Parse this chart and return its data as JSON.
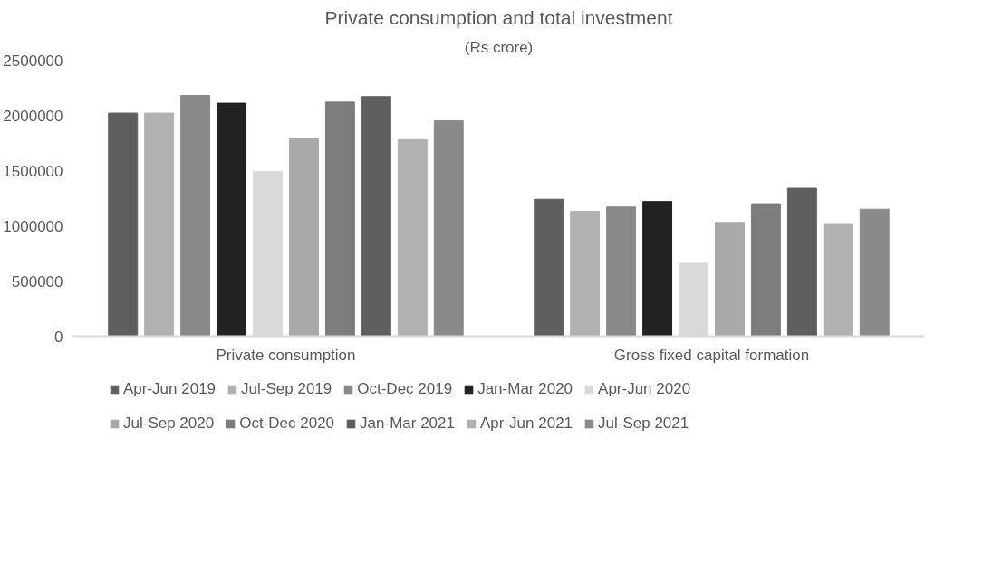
{
  "chart_data": {
    "type": "bar",
    "title": "Private consumption and total investment",
    "subtitle": "(Rs crore)",
    "categories": [
      "Private consumption",
      "Gross fixed capital formation"
    ],
    "series": [
      {
        "name": "Apr-Jun 2019",
        "color": "#5f5f5f",
        "values": [
          2020000,
          1240000
        ]
      },
      {
        "name": "Jul-Sep 2019",
        "color": "#b1b1b1",
        "values": [
          2020000,
          1130000
        ]
      },
      {
        "name": "Oct-Dec 2019",
        "color": "#898989",
        "values": [
          2180000,
          1170000
        ]
      },
      {
        "name": "Jan-Mar 2020",
        "color": "#222222",
        "values": [
          2110000,
          1220000
        ]
      },
      {
        "name": "Apr-Jun 2020",
        "color": "#d9d9d9",
        "values": [
          1490000,
          660000
        ]
      },
      {
        "name": "Jul-Sep 2020",
        "color": "#a9a9a9",
        "values": [
          1790000,
          1030000
        ]
      },
      {
        "name": "Oct-Dec 2020",
        "color": "#7d7d7d",
        "values": [
          2120000,
          1200000
        ]
      },
      {
        "name": "Jan-Mar 2021",
        "color": "#5f5f5f",
        "values": [
          2170000,
          1340000
        ]
      },
      {
        "name": "Apr-Jun 2021",
        "color": "#b1b1b1",
        "values": [
          1780000,
          1020000
        ]
      },
      {
        "name": "Jul-Sep 2021",
        "color": "#8a8a8a",
        "values": [
          1950000,
          1150000
        ]
      }
    ],
    "ylim": [
      0,
      2500000
    ],
    "yticks": [
      0,
      500000,
      1000000,
      1500000,
      2000000,
      2500000
    ],
    "grid": false,
    "legend": "bottom"
  }
}
